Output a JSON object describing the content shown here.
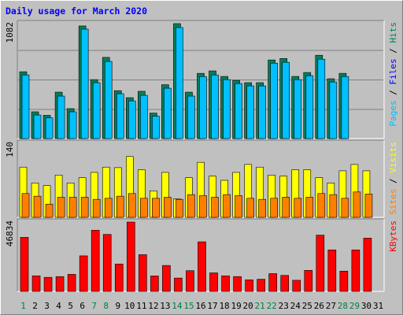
{
  "title": "Daily usage for March 2020",
  "colors": {
    "hits": "#00805c",
    "files": "#00c0ff",
    "sites": "#ff8000",
    "visits": "#ffff00",
    "kbytes": "#ff0000",
    "weekday_label": "#000000",
    "weekend_label": "#008040",
    "title": "#0000ff"
  },
  "chart_data": [
    {
      "type": "bar",
      "panel": "top",
      "ymax": 1082,
      "ymax_label": "1082",
      "legend": [
        {
          "text": "Pages",
          "color": "#00c0ff"
        },
        {
          "text": " / ",
          "color": "#000000"
        },
        {
          "text": "Files",
          "color": "#0000ff"
        },
        {
          "text": " / ",
          "color": "#000000"
        },
        {
          "text": "Hits",
          "color": "#00805c"
        }
      ],
      "series": [
        {
          "name": "Hits",
          "values": [
            629,
            252,
            219,
            437,
            282,
            1060,
            555,
            764,
            451,
            385,
            445,
            240,
            507,
            1082,
            437,
            614,
            637,
            585,
            548,
            526,
            526,
            740,
            754,
            585,
            622,
            784,
            563,
            614,
            0,
            0,
            0
          ]
        },
        {
          "name": "Files",
          "values": [
            599,
            222,
            196,
            400,
            252,
            1030,
            526,
            726,
            422,
            355,
            407,
            211,
            474,
            1045,
            400,
            584,
            599,
            555,
            518,
            496,
            496,
            710,
            718,
            555,
            592,
            747,
            533,
            584,
            0,
            0,
            0
          ]
        }
      ]
    },
    {
      "type": "bar",
      "panel": "middle",
      "ymax": 140,
      "ymax_label": "140",
      "legend": [
        {
          "text": "Sites",
          "color": "#ff8000"
        },
        {
          "text": " / ",
          "color": "#000000"
        },
        {
          "text": "Visits",
          "color": "#ffff00"
        }
      ],
      "series": [
        {
          "name": "Visits",
          "values": [
            95,
            65,
            60,
            80,
            65,
            75,
            85,
            95,
            94,
            115,
            90,
            50,
            85,
            35,
            75,
            104,
            78,
            70,
            85,
            100,
            95,
            80,
            78,
            90,
            90,
            75,
            65,
            88,
            100,
            88,
            0
          ]
        },
        {
          "name": "Sites",
          "values": [
            45,
            40,
            25,
            38,
            38,
            38,
            34,
            36,
            40,
            45,
            36,
            36,
            38,
            34,
            43,
            41,
            38,
            43,
            41,
            36,
            34,
            36,
            38,
            36,
            38,
            45,
            43,
            36,
            48,
            44,
            0
          ]
        }
      ]
    },
    {
      "type": "bar",
      "panel": "bottom",
      "ymax": 46834,
      "ymax_label": "46834",
      "legend": [
        {
          "text": "KBytes",
          "color": "#ff0000"
        }
      ],
      "series": [
        {
          "name": "KBytes",
          "values": [
            36500,
            10500,
            9500,
            10000,
            11500,
            24000,
            41300,
            38500,
            18500,
            46834,
            24800,
            10400,
            17500,
            9000,
            14000,
            33500,
            12500,
            10500,
            10000,
            7800,
            8200,
            12000,
            10800,
            7500,
            14200,
            38000,
            28000,
            13700,
            28000,
            36000,
            0
          ]
        }
      ]
    }
  ],
  "x_axis": {
    "days": [
      "1",
      "2",
      "3",
      "4",
      "5",
      "6",
      "7",
      "8",
      "9",
      "10",
      "11",
      "12",
      "13",
      "14",
      "15",
      "16",
      "17",
      "18",
      "19",
      "20",
      "21",
      "22",
      "23",
      "24",
      "25",
      "26",
      "27",
      "28",
      "29",
      "30",
      "31"
    ],
    "weekend_days": [
      "1",
      "7",
      "8",
      "14",
      "15",
      "21",
      "22",
      "28",
      "29"
    ]
  }
}
